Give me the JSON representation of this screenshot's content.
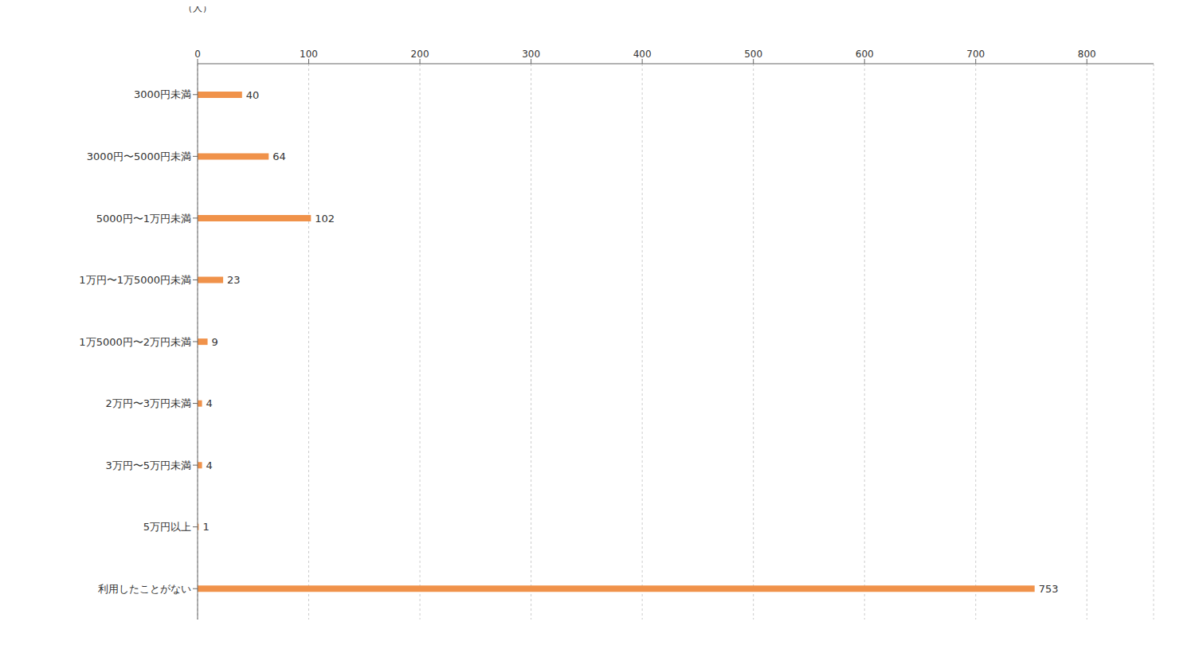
{
  "chart_data": {
    "type": "bar",
    "orientation": "horizontal",
    "categories": [
      "3000円未満",
      "3000円〜5000円未満",
      "5000円〜1万円未満",
      "1万円〜1万5000円未満",
      "1万5000円〜2万円未満",
      "2万円〜3万円未満",
      "3万円〜5万円未満",
      "5万円以上",
      "利用したことがない"
    ],
    "values": [
      40,
      64,
      102,
      23,
      9,
      4,
      4,
      1,
      753
    ],
    "color": "#f0924a",
    "xlabel": "（人）",
    "xlim": [
      0,
      860
    ],
    "xticks": [
      0,
      100,
      200,
      300,
      400,
      500,
      600,
      700,
      800
    ],
    "grid": true,
    "data_labels": true
  }
}
